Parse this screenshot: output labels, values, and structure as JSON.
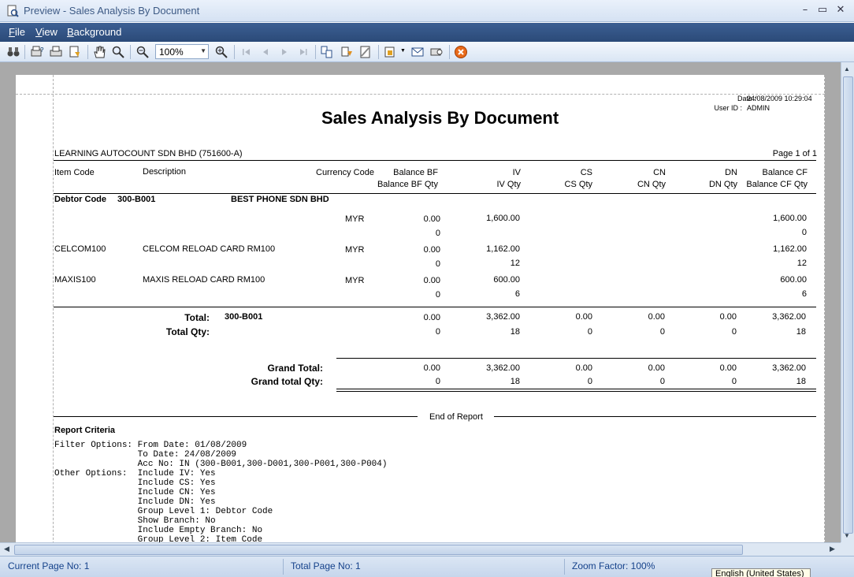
{
  "window": {
    "title": "Preview - Sales Analysis By Document"
  },
  "menu": [
    {
      "first": "F",
      "rest": "ile"
    },
    {
      "first": "V",
      "rest": "iew"
    },
    {
      "first": "B",
      "rest": "ackground"
    }
  ],
  "toolbar": {
    "zoom_value": "100%",
    "icons": [
      "find-icon",
      "print-setup-icon",
      "print-icon",
      "page-setup-icon",
      "hand-tool-icon",
      "magnifier-icon",
      "zoom-out-icon",
      "zoom-in-icon",
      "first-page-icon",
      "previous-page-icon",
      "next-page-icon",
      "last-page-icon",
      "multiple-pages-icon",
      "color-icon",
      "watermark-icon",
      "export-icon",
      "email-icon",
      "send-icon",
      "close-preview-icon"
    ]
  },
  "report": {
    "date_label": "Date :",
    "date_value": "24/08/2009 10:29:04",
    "user_label": "User ID :",
    "user_value": "ADMIN",
    "title": "Sales Analysis By Document",
    "company": "LEARNING AUTOCOUNT SDN BHD (751600-A)",
    "page_info": "Page 1 of 1",
    "headers": {
      "item_code": "Item Code",
      "description": "Description",
      "currency_code": "Currency Code",
      "balance_bf": "Balance BF",
      "balance_bf_qty": "Balance BF Qty",
      "iv": "IV",
      "iv_qty": "IV Qty",
      "cs": "CS",
      "cs_qty": "CS Qty",
      "cn": "CN",
      "cn_qty": "CN Qty",
      "dn": "DN",
      "dn_qty": "DN Qty",
      "balance_cf": "Balance CF",
      "balance_cf_qty": "Balance CF Qty"
    },
    "debtor_label": "Debtor Code",
    "debtor_code": "300-B001",
    "debtor_name": "BEST PHONE SDN BHD",
    "rows": [
      {
        "item": "",
        "desc": "",
        "cur": "MYR",
        "bf": "0.00",
        "bf_qty": "0",
        "iv": "1,600.00",
        "iv_qty": "",
        "cf": "1,600.00",
        "cf_qty": "0"
      },
      {
        "item": "CELCOM100",
        "desc": "CELCOM RELOAD CARD RM100",
        "cur": "MYR",
        "bf": "0.00",
        "bf_qty": "0",
        "iv": "1,162.00",
        "iv_qty": "12",
        "cf": "1,162.00",
        "cf_qty": "12"
      },
      {
        "item": "MAXIS100",
        "desc": "MAXIS RELOAD CARD RM100",
        "cur": "MYR",
        "bf": "0.00",
        "bf_qty": "0",
        "iv": "600.00",
        "iv_qty": "6",
        "cf": "600.00",
        "cf_qty": "6"
      }
    ],
    "total": {
      "label": "Total:",
      "code": "300-B001",
      "qty_label": "Total Qty:",
      "bf": "0.00",
      "iv": "3,362.00",
      "cs": "0.00",
      "cn": "0.00",
      "dn": "0.00",
      "cf": "3,362.00",
      "bf_qty": "0",
      "iv_qty": "18",
      "cs_qty": "0",
      "cn_qty": "0",
      "dn_qty": "0",
      "cf_qty": "18"
    },
    "grand": {
      "label": "Grand Total:",
      "qty_label": "Grand total Qty:",
      "bf": "0.00",
      "iv": "3,362.00",
      "cs": "0.00",
      "cn": "0.00",
      "dn": "0.00",
      "cf": "3,362.00",
      "bf_qty": "0",
      "iv_qty": "18",
      "cs_qty": "0",
      "cn_qty": "0",
      "dn_qty": "0",
      "cf_qty": "18"
    },
    "end_of_report": "End of Report",
    "criteria_title": "Report Criteria",
    "criteria_lines": [
      "Filter Options: From Date: 01/08/2009",
      "                To Date: 24/08/2009",
      "                Acc No: IN (300-B001,300-D001,300-P001,300-P004)",
      "Other Options:  Include IV: Yes",
      "                Include CS: Yes",
      "                Include CN: Yes",
      "                Include DN: Yes",
      "                Group Level 1: Debtor Code",
      "                Show Branch: No",
      "                Include Empty Branch: No",
      "                Group Level 2: Item Code"
    ]
  },
  "status": {
    "current_page": "Current Page No: 1",
    "total_page": "Total Page No: 1",
    "zoom": "Zoom Factor: 100%",
    "language": "English (United States)"
  }
}
